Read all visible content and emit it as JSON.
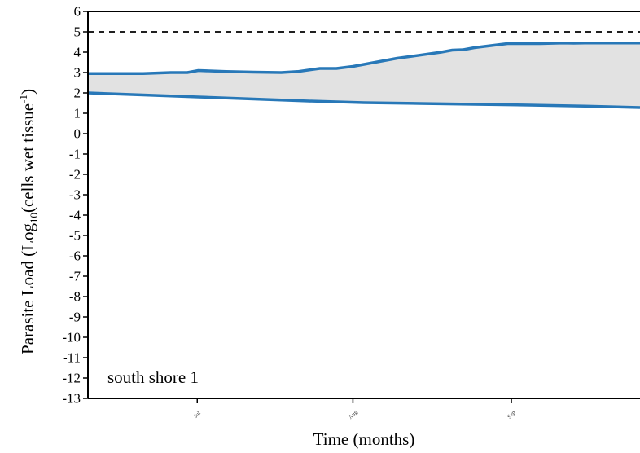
{
  "chart_data": {
    "type": "area",
    "panel_label": "south shore 1",
    "xlabel": "Time (months)",
    "ylabel": {
      "prefix": "Parasite Load (Log",
      "sub": "10",
      "middle": "(cells wet tissue",
      "sup": "-1",
      "suffix": ")"
    },
    "ylim": [
      -13,
      6
    ],
    "yticks": [
      6,
      5,
      4,
      3,
      2,
      1,
      0,
      -1,
      -2,
      -3,
      -4,
      -5,
      -6,
      -7,
      -8,
      -9,
      -10,
      -11,
      -12,
      -13
    ],
    "xlim": [
      0,
      100
    ],
    "month_ticks": [
      {
        "label": "Jul",
        "x": 19.8
      },
      {
        "label": "Aug",
        "x": 48.0
      },
      {
        "label": "Sep",
        "x": 76.7
      }
    ],
    "threshold": 5,
    "grid": false,
    "colors": {
      "line": "#2878b8",
      "band": "#e2e2e2",
      "threshold": "#000000"
    },
    "series": [
      {
        "role": "upper",
        "x": [
          0,
          5,
          10,
          15,
          18,
          20,
          25,
          30,
          35,
          38,
          42,
          45,
          48,
          52,
          56,
          60,
          64,
          66,
          68,
          70,
          73,
          76,
          80,
          82,
          86,
          88,
          90,
          100
        ],
        "values": [
          2.95,
          2.95,
          2.95,
          3.0,
          3.0,
          3.1,
          3.05,
          3.02,
          3.0,
          3.05,
          3.2,
          3.2,
          3.3,
          3.5,
          3.7,
          3.85,
          4.0,
          4.1,
          4.12,
          4.22,
          4.32,
          4.42,
          4.42,
          4.42,
          4.45,
          4.44,
          4.45,
          4.45
        ]
      },
      {
        "role": "lower",
        "x": [
          0,
          10,
          20,
          30,
          40,
          50,
          60,
          70,
          80,
          90,
          100
        ],
        "values": [
          2.0,
          1.9,
          1.8,
          1.7,
          1.6,
          1.52,
          1.48,
          1.44,
          1.4,
          1.35,
          1.28
        ]
      }
    ]
  }
}
